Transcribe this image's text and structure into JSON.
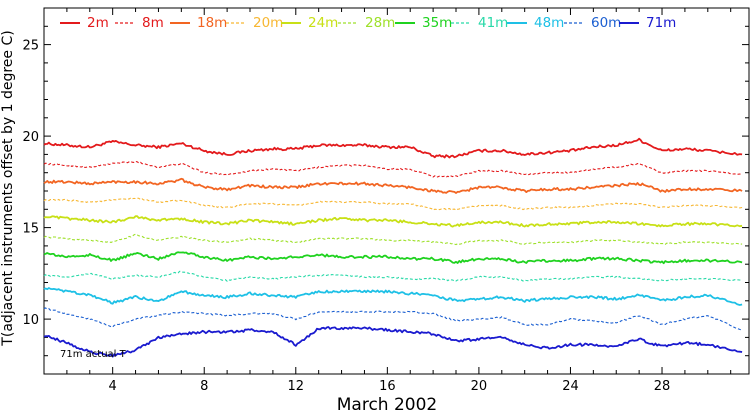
{
  "chart_data": {
    "type": "line",
    "title": "",
    "xlabel": "March 2002",
    "ylabel": "T(adjacent instruments offset by 1 degree C)",
    "xlim": [
      1,
      31.8
    ],
    "ylim": [
      7,
      27
    ],
    "x_ticks": [
      4,
      8,
      12,
      16,
      20,
      24,
      28
    ],
    "y_ticks": [
      10,
      15,
      20,
      25
    ],
    "grid": false,
    "legend_position": "top",
    "annotation": "71m actual T",
    "x": [
      1,
      2,
      3,
      4,
      5,
      6,
      7,
      8,
      9,
      10,
      11,
      12,
      13,
      14,
      15,
      16,
      17,
      18,
      19,
      20,
      21,
      22,
      23,
      24,
      25,
      26,
      27,
      28,
      29,
      30,
      31.5
    ],
    "series": [
      {
        "name": "2m",
        "color": "#e31a1c",
        "dash": "solid",
        "values": [
          19.6,
          19.5,
          19.4,
          19.7,
          19.5,
          19.4,
          19.6,
          19.2,
          19.0,
          19.2,
          19.3,
          19.3,
          19.5,
          19.5,
          19.5,
          19.4,
          19.4,
          18.9,
          18.9,
          19.2,
          19.2,
          19.0,
          19.1,
          19.2,
          19.4,
          19.5,
          19.8,
          19.2,
          19.3,
          19.2,
          19.0
        ]
      },
      {
        "name": "8m",
        "color": "#e31a1c",
        "dash": "dashed",
        "values": [
          18.5,
          18.4,
          18.3,
          18.5,
          18.6,
          18.3,
          18.5,
          18.0,
          17.9,
          18.1,
          18.2,
          18.1,
          18.3,
          18.4,
          18.4,
          18.2,
          18.2,
          17.8,
          17.8,
          18.1,
          18.1,
          17.9,
          18.0,
          18.0,
          18.2,
          18.3,
          18.5,
          18.0,
          18.1,
          18.1,
          17.9
        ]
      },
      {
        "name": "18m",
        "color": "#f26522",
        "dash": "solid",
        "values": [
          17.5,
          17.5,
          17.4,
          17.5,
          17.5,
          17.4,
          17.6,
          17.2,
          17.1,
          17.3,
          17.2,
          17.2,
          17.4,
          17.4,
          17.4,
          17.3,
          17.2,
          17.0,
          16.9,
          17.2,
          17.2,
          17.0,
          17.1,
          17.1,
          17.2,
          17.3,
          17.4,
          17.0,
          17.1,
          17.1,
          17.0
        ]
      },
      {
        "name": "20m",
        "color": "#f7b733",
        "dash": "dashed",
        "values": [
          16.5,
          16.5,
          16.4,
          16.5,
          16.6,
          16.4,
          16.5,
          16.2,
          16.1,
          16.3,
          16.3,
          16.2,
          16.4,
          16.4,
          16.4,
          16.3,
          16.3,
          16.0,
          16.0,
          16.2,
          16.2,
          16.0,
          16.1,
          16.1,
          16.2,
          16.3,
          16.3,
          16.1,
          16.2,
          16.2,
          16.1
        ]
      },
      {
        "name": "24m",
        "color": "#c8e016",
        "dash": "solid",
        "values": [
          15.6,
          15.5,
          15.4,
          15.3,
          15.6,
          15.4,
          15.5,
          15.3,
          15.2,
          15.4,
          15.3,
          15.2,
          15.4,
          15.5,
          15.4,
          15.4,
          15.3,
          15.2,
          15.1,
          15.3,
          15.3,
          15.1,
          15.2,
          15.2,
          15.3,
          15.3,
          15.2,
          15.1,
          15.2,
          15.2,
          15.1
        ]
      },
      {
        "name": "28m",
        "color": "#9ee02a",
        "dash": "dashed",
        "values": [
          14.5,
          14.4,
          14.3,
          14.2,
          14.6,
          14.3,
          14.5,
          14.3,
          14.2,
          14.4,
          14.3,
          14.2,
          14.4,
          14.4,
          14.4,
          14.3,
          14.3,
          14.2,
          14.1,
          14.3,
          14.3,
          14.1,
          14.2,
          14.2,
          14.3,
          14.3,
          14.2,
          14.1,
          14.2,
          14.2,
          14.1
        ]
      },
      {
        "name": "35m",
        "color": "#1fd21f",
        "dash": "solid",
        "values": [
          13.6,
          13.4,
          13.5,
          13.2,
          13.6,
          13.3,
          13.7,
          13.4,
          13.2,
          13.4,
          13.3,
          13.4,
          13.5,
          13.4,
          13.4,
          13.4,
          13.3,
          13.3,
          13.1,
          13.3,
          13.3,
          13.1,
          13.2,
          13.2,
          13.3,
          13.3,
          13.2,
          13.1,
          13.2,
          13.2,
          13.1
        ]
      },
      {
        "name": "41m",
        "color": "#28d9a8",
        "dash": "dashed",
        "values": [
          12.4,
          12.3,
          12.5,
          12.2,
          12.4,
          12.3,
          12.6,
          12.3,
          12.1,
          12.3,
          12.2,
          12.3,
          12.4,
          12.4,
          12.3,
          12.3,
          12.2,
          12.2,
          12.1,
          12.3,
          12.3,
          12.1,
          12.2,
          12.2,
          12.3,
          12.3,
          12.2,
          12.1,
          12.2,
          12.2,
          12.1
        ]
      },
      {
        "name": "48m",
        "color": "#1ec0e6",
        "dash": "solid",
        "values": [
          11.7,
          11.5,
          11.3,
          10.9,
          11.2,
          11.0,
          11.5,
          11.3,
          11.2,
          11.4,
          11.3,
          11.2,
          11.5,
          11.5,
          11.5,
          11.5,
          11.4,
          11.3,
          11.0,
          11.1,
          11.2,
          11.0,
          11.1,
          11.2,
          11.2,
          11.1,
          11.3,
          11.0,
          11.2,
          11.3,
          10.8
        ]
      },
      {
        "name": "60m",
        "color": "#1b5fd1",
        "dash": "dashed",
        "values": [
          10.6,
          10.3,
          10.0,
          9.6,
          10.0,
          10.2,
          10.4,
          10.3,
          10.2,
          10.3,
          10.3,
          10.0,
          10.4,
          10.4,
          10.4,
          10.4,
          10.4,
          10.3,
          9.9,
          10.0,
          10.1,
          9.7,
          9.7,
          10.0,
          9.9,
          9.8,
          10.2,
          9.7,
          10.0,
          10.2,
          9.4
        ]
      },
      {
        "name": "71m",
        "color": "#1a1acf",
        "dash": "solid",
        "values": [
          9.1,
          8.7,
          8.2,
          8.0,
          8.3,
          9.0,
          9.2,
          9.3,
          9.3,
          9.4,
          9.3,
          8.6,
          9.5,
          9.5,
          9.5,
          9.4,
          9.3,
          9.2,
          8.8,
          8.9,
          9.0,
          8.6,
          8.4,
          8.6,
          8.6,
          8.5,
          8.9,
          8.5,
          8.7,
          8.6,
          8.2
        ]
      }
    ]
  }
}
